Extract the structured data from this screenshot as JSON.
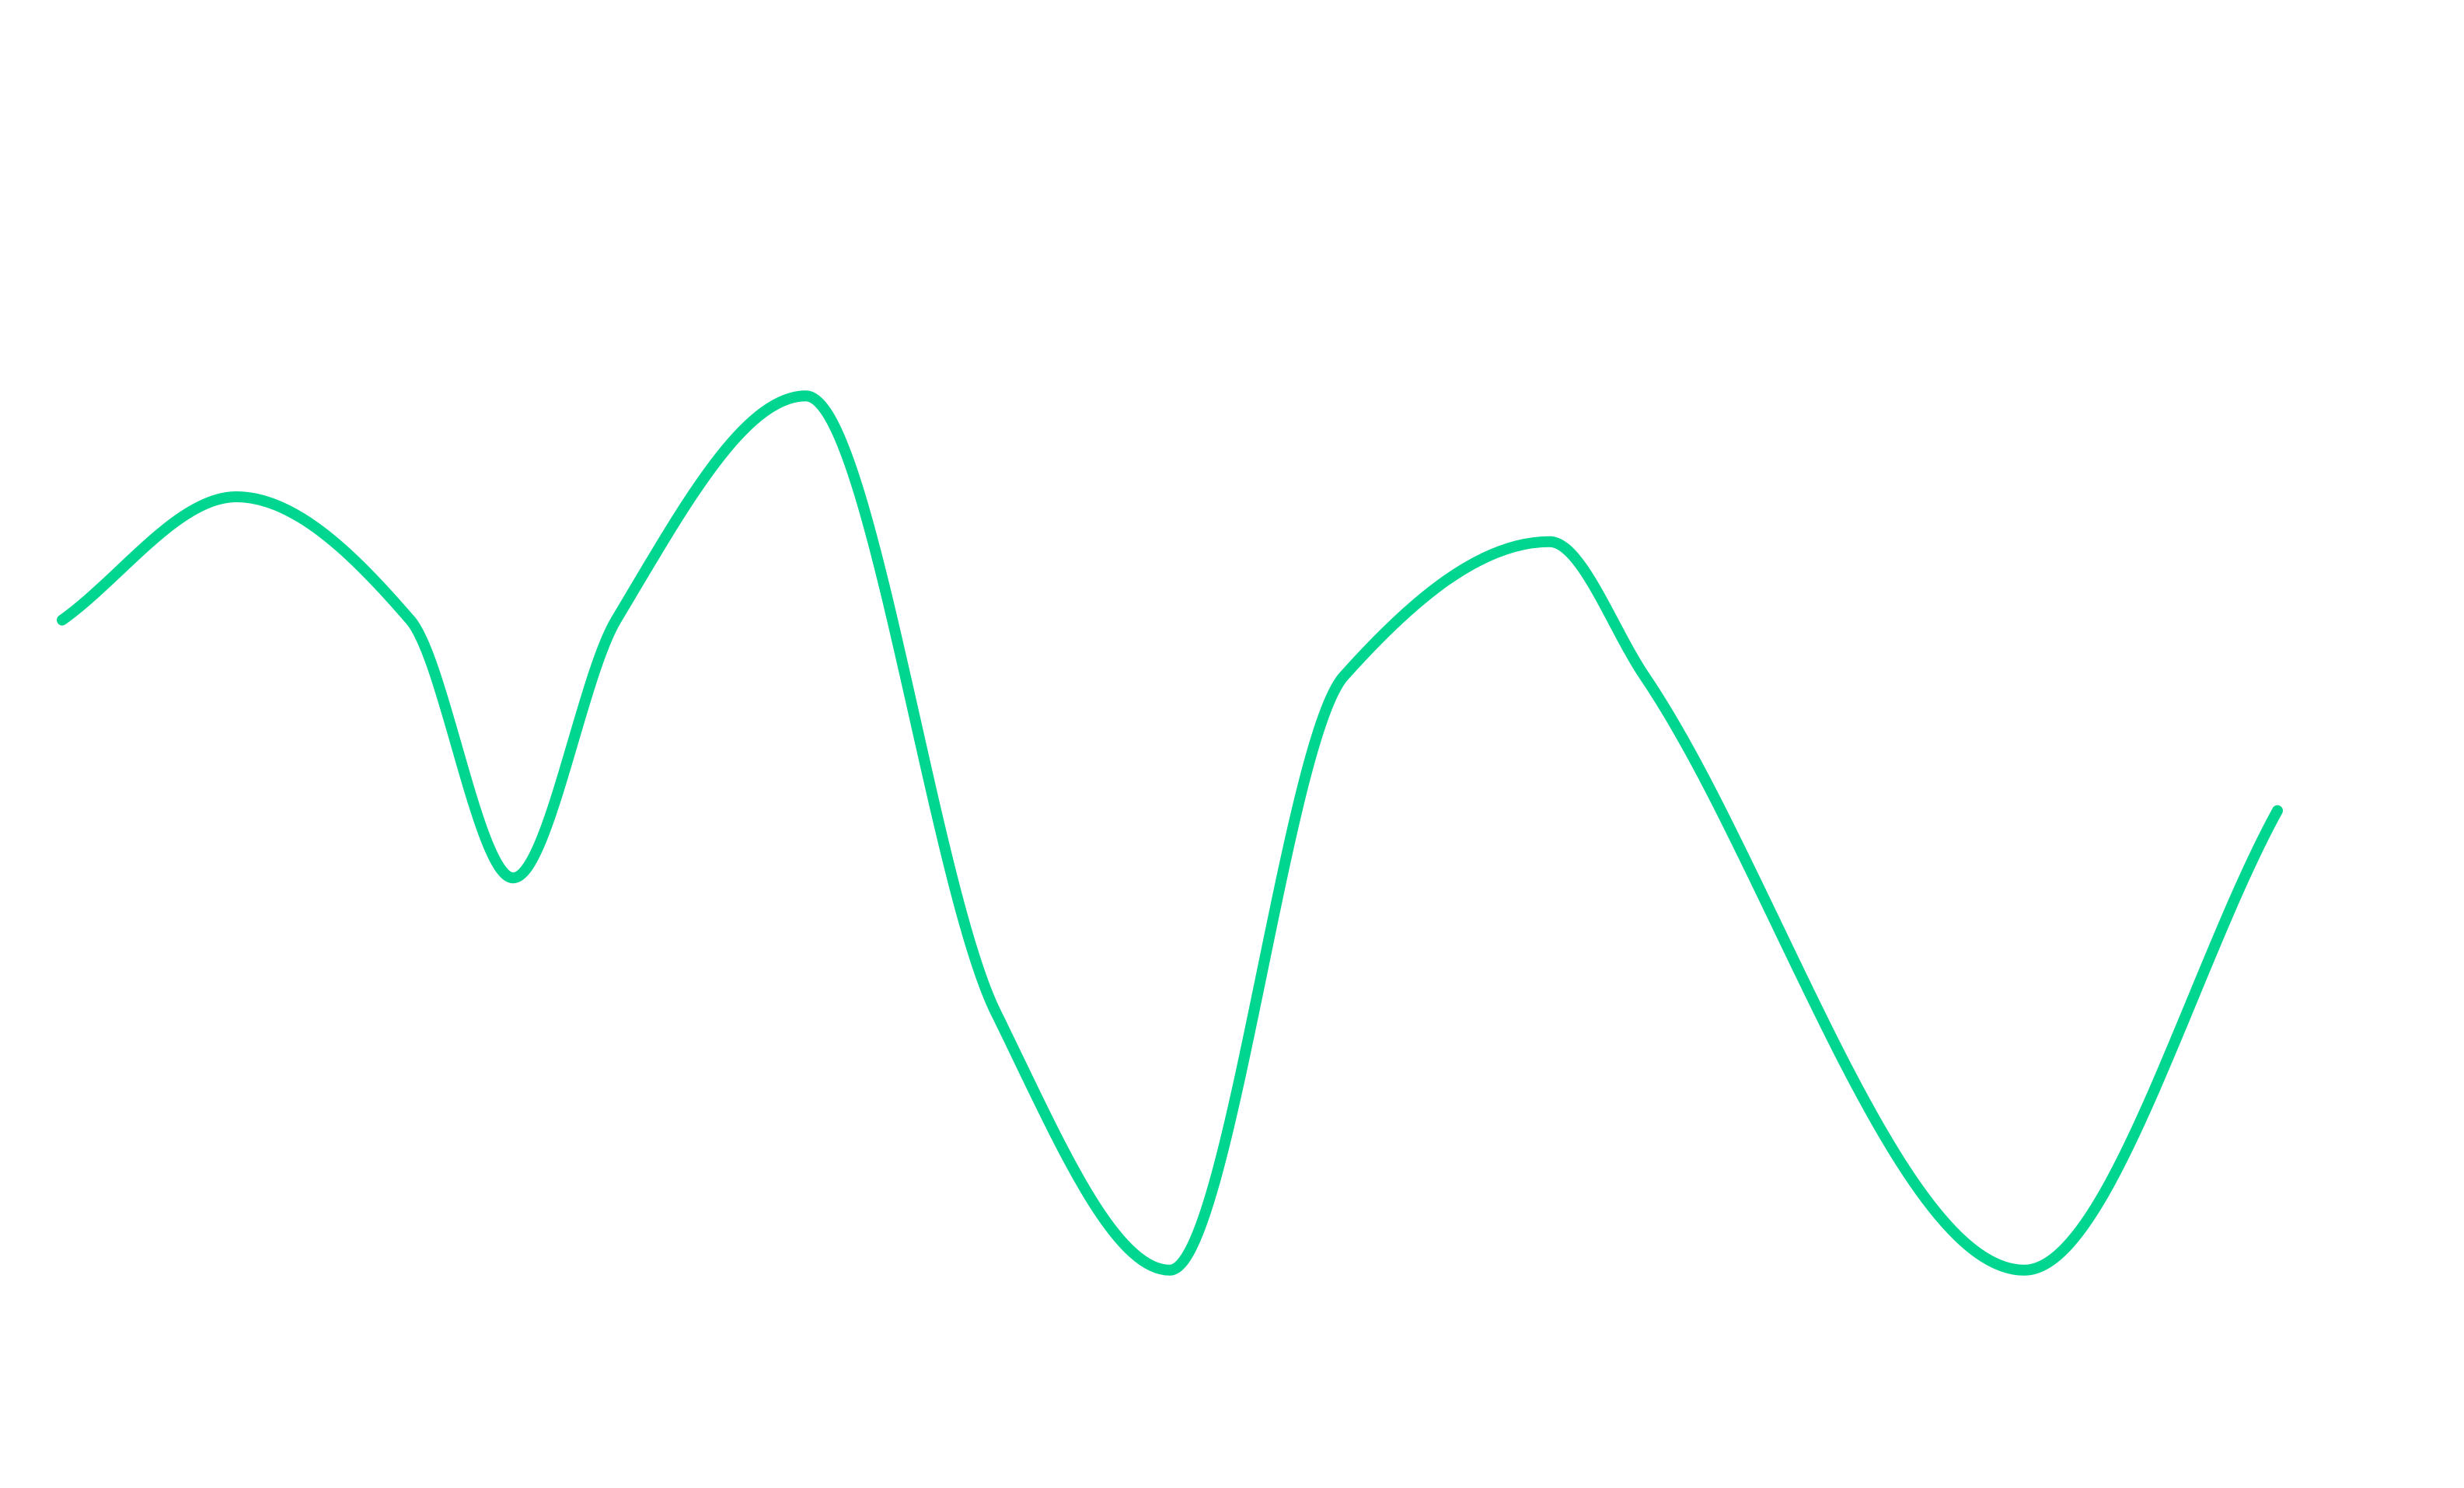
{
  "chart_data": {
    "type": "line",
    "title": "",
    "xlabel": "",
    "ylabel": "",
    "grid": false,
    "legend": "none",
    "axes_visible": false,
    "interpolation": "smooth",
    "xlim": [
      0,
      14
    ],
    "ylim": [
      -6,
      6
    ],
    "series": [
      {
        "color": "#00d68f",
        "x": [
          0,
          1.1,
          2.2,
          2.85,
          3.5,
          4.7,
          5.9,
          7.0,
          8.1,
          9.4,
          10.0,
          12.4,
          14.0
        ],
        "y": [
          1.3,
          2.4,
          1.3,
          -1.0,
          1.3,
          3.3,
          -2.2,
          -4.5,
          0.8,
          2.0,
          0.8,
          -4.5,
          -0.4
        ]
      }
    ]
  }
}
